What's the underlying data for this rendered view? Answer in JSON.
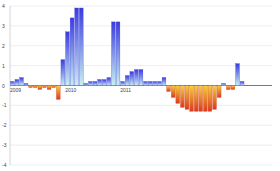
{
  "chart_data": {
    "type": "bar",
    "categories": [
      "2009",
      null,
      null,
      null,
      null,
      null,
      null,
      null,
      null,
      null,
      null,
      null,
      "2010",
      null,
      null,
      null,
      null,
      null,
      null,
      null,
      null,
      null,
      null,
      null,
      "2011",
      null,
      null,
      null,
      null,
      null,
      null,
      null,
      null,
      null,
      null,
      null,
      null,
      null,
      null,
      null,
      null,
      null,
      null,
      null,
      null,
      null,
      null,
      null,
      null,
      null,
      null,
      null,
      null,
      null,
      null,
      null,
      null
    ],
    "values": [
      0.2,
      0.3,
      0.4,
      0.1,
      -0.1,
      -0.1,
      -0.2,
      -0.1,
      -0.2,
      -0.1,
      -0.7,
      1.3,
      2.7,
      3.4,
      3.9,
      3.9,
      0.1,
      0.2,
      0.2,
      0.3,
      0.3,
      0.4,
      3.2,
      3.2,
      0.2,
      0.5,
      0.7,
      0.8,
      0.8,
      0.2,
      0.2,
      0.2,
      0.2,
      0.4,
      -0.3,
      -0.6,
      -0.9,
      -1.1,
      -1.2,
      -1.3,
      -1.3,
      -1.3,
      -1.3,
      -1.3,
      -1.2,
      -0.6,
      0.1,
      -0.2,
      -0.2,
      1.1,
      0.2,
      0,
      0,
      0,
      0,
      0,
      0
    ],
    "colors": [
      "#3a3adf",
      "#3a3adf",
      "#3a3adf",
      "#3a3adf",
      "#d93a1e",
      "#d93a1e",
      "#d93a1e",
      "#d93a1e",
      "#d93a1e",
      "#d93a1e",
      "#d93a1e",
      "#3a3adf",
      "#3a3adf",
      "#3a3adf",
      "#3a3adf",
      "#3a3adf",
      "#3a3adf",
      "#3a3adf",
      "#3a3adf",
      "#3a3adf",
      "#3a3adf",
      "#3a3adf",
      "#3a3adf",
      "#3a3adf",
      "#3a3adf",
      "#3a3adf",
      "#3a3adf",
      "#3a3adf",
      "#3a3adf",
      "#3a3adf",
      "#3a3adf",
      "#3a3adf",
      "#3a3adf",
      "#3a3adf",
      "#d93a1e",
      "#d93a1e",
      "#d93a1e",
      "#d93a1e",
      "#d93a1e",
      "#d93a1e",
      "#d93a1e",
      "#d93a1e",
      "#d93a1e",
      "#d93a1e",
      "#d93a1e",
      "#d93a1e",
      "#3a3adf",
      "#d93a1e",
      "#d93a1e",
      "#3a3adf",
      "#3a3adf",
      "#3a3adf",
      "#3a3adf",
      "#3a3adf",
      "#3a3adf",
      "#3a3adf",
      "#3a3adf"
    ],
    "ylim": [
      -4,
      4
    ],
    "yticks": [
      -4,
      -3,
      -2,
      -1,
      0,
      1,
      2,
      3,
      4
    ],
    "grid": true
  }
}
